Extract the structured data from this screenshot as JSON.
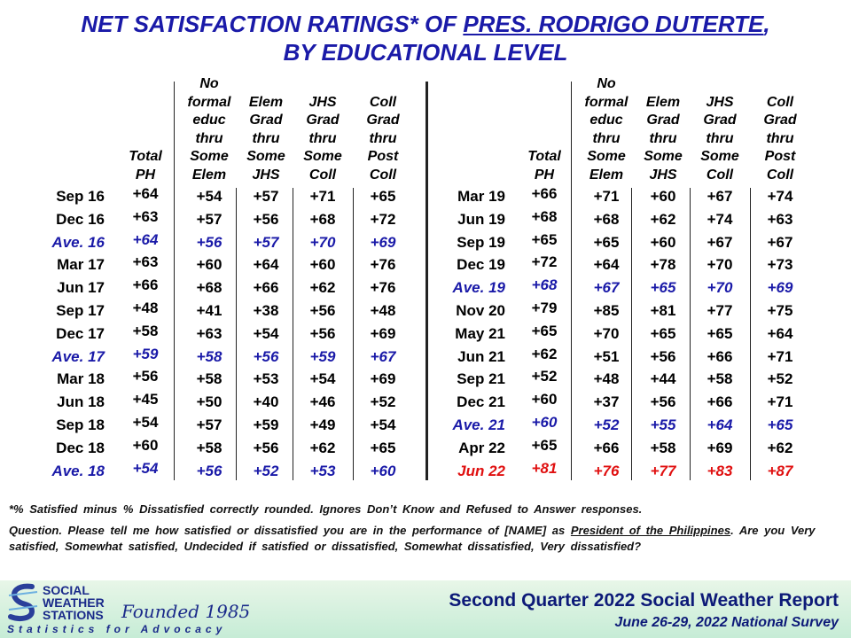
{
  "title": {
    "line1_pre": "NET SATISFACTION  RATINGS* OF ",
    "line1_link": "PRES. RODRIGO DUTERTE",
    "line1_post": ",",
    "line2": "BY EDUCATIONAL  LEVEL"
  },
  "headers": {
    "total": [
      "Total",
      "PH"
    ],
    "nofor": [
      "No",
      "formal",
      "educ",
      "thru",
      "Some",
      "Elem"
    ],
    "elem": [
      "Elem",
      "Grad",
      "thru",
      "Some",
      "JHS"
    ],
    "jhs": [
      "JHS",
      "Grad",
      "thru",
      "Some",
      "Coll"
    ],
    "coll": [
      "Coll",
      "Grad",
      "thru",
      "Post",
      "Coll"
    ]
  },
  "chart_data": {
    "type": "table",
    "title": "NET SATISFACTION RATINGS* OF PRES. RODRIGO DUTERTE, BY EDUCATIONAL LEVEL",
    "columns": [
      "Total PH",
      "No formal educ thru Some Elem",
      "Elem Grad thru Some JHS",
      "JHS Grad thru Some Coll",
      "Coll Grad thru Post Coll"
    ],
    "left": [
      {
        "label": "Sep 16",
        "values": [
          "+64",
          "+54",
          "+57",
          "+71",
          "+65"
        ],
        "style": "normal"
      },
      {
        "label": "Dec 16",
        "values": [
          "+63",
          "+57",
          "+56",
          "+68",
          "+72"
        ],
        "style": "normal"
      },
      {
        "label": "Ave. 16",
        "values": [
          "+64",
          "+56",
          "+57",
          "+70",
          "+69"
        ],
        "style": "ave"
      },
      {
        "label": "Mar 17",
        "values": [
          "+63",
          "+60",
          "+64",
          "+60",
          "+76"
        ],
        "style": "normal"
      },
      {
        "label": "Jun 17",
        "values": [
          "+66",
          "+68",
          "+66",
          "+62",
          "+76"
        ],
        "style": "normal"
      },
      {
        "label": "Sep 17",
        "values": [
          "+48",
          "+41",
          "+38",
          "+56",
          "+48"
        ],
        "style": "normal"
      },
      {
        "label": "Dec 17",
        "values": [
          "+58",
          "+63",
          "+54",
          "+56",
          "+69"
        ],
        "style": "normal"
      },
      {
        "label": "Ave. 17",
        "values": [
          "+59",
          "+58",
          "+56",
          "+59",
          "+67"
        ],
        "style": "ave"
      },
      {
        "label": "Mar 18",
        "values": [
          "+56",
          "+58",
          "+53",
          "+54",
          "+69"
        ],
        "style": "normal"
      },
      {
        "label": "Jun 18",
        "values": [
          "+45",
          "+50",
          "+40",
          "+46",
          "+52"
        ],
        "style": "normal"
      },
      {
        "label": "Sep 18",
        "values": [
          "+54",
          "+57",
          "+59",
          "+49",
          "+54"
        ],
        "style": "normal"
      },
      {
        "label": "Dec 18",
        "values": [
          "+60",
          "+58",
          "+56",
          "+62",
          "+65"
        ],
        "style": "normal"
      },
      {
        "label": "Ave. 18",
        "values": [
          "+54",
          "+56",
          "+52",
          "+53",
          "+60"
        ],
        "style": "ave"
      }
    ],
    "right": [
      {
        "label": "Mar 19",
        "values": [
          "+66",
          "+71",
          "+60",
          "+67",
          "+74"
        ],
        "style": "normal"
      },
      {
        "label": "Jun 19",
        "values": [
          "+68",
          "+68",
          "+62",
          "+74",
          "+63"
        ],
        "style": "normal"
      },
      {
        "label": "Sep 19",
        "values": [
          "+65",
          "+65",
          "+60",
          "+67",
          "+67"
        ],
        "style": "normal"
      },
      {
        "label": "Dec 19",
        "values": [
          "+72",
          "+64",
          "+78",
          "+70",
          "+73"
        ],
        "style": "normal"
      },
      {
        "label": "Ave. 19",
        "values": [
          "+68",
          "+67",
          "+65",
          "+70",
          "+69"
        ],
        "style": "ave"
      },
      {
        "label": "Nov 20",
        "values": [
          "+79",
          "+85",
          "+81",
          "+77",
          "+75"
        ],
        "style": "normal"
      },
      {
        "label": "May 21",
        "values": [
          "+65",
          "+70",
          "+65",
          "+65",
          "+64"
        ],
        "style": "normal"
      },
      {
        "label": "Jun 21",
        "values": [
          "+62",
          "+51",
          "+56",
          "+66",
          "+71"
        ],
        "style": "normal"
      },
      {
        "label": "Sep 21",
        "values": [
          "+52",
          "+48",
          "+44",
          "+58",
          "+52"
        ],
        "style": "normal"
      },
      {
        "label": "Dec 21",
        "values": [
          "+60",
          "+37",
          "+56",
          "+66",
          "+71"
        ],
        "style": "normal"
      },
      {
        "label": "Ave. 21",
        "values": [
          "+60",
          "+52",
          "+55",
          "+64",
          "+65"
        ],
        "style": "ave"
      },
      {
        "label": "Apr 22",
        "values": [
          "+65",
          "+66",
          "+58",
          "+69",
          "+62"
        ],
        "style": "normal"
      },
      {
        "label": "Jun 22",
        "values": [
          "+81",
          "+76",
          "+77",
          "+83",
          "+87"
        ],
        "style": "red"
      }
    ]
  },
  "notes": {
    "footnote": "*% Satisfied minus % Dissatisfied correctly rounded. Ignores Don’t Know and Refused to Answer responses.",
    "question_pre": "Question. Please tell me how satisfied or dissatisfied you are in the performance of [NAME] as ",
    "question_link": "President of the Philippines",
    "question_post": ". Are you Very satisfied, Somewhat satisfied, Undecided if satisfied or dissatisfied, Somewhat dissatisfied, Very dissatisfied?"
  },
  "footer": {
    "logo_lines": [
      "SOCIAL",
      "WEATHER",
      "STATIONS"
    ],
    "founded": "Founded 1985",
    "tagline": "Statistics for Advocacy",
    "report": "Second Quarter 2022 Social Weather Report",
    "survey": "June 26-29, 2022 National Survey"
  },
  "colors": {
    "title": "#1a1aa8",
    "average": "#1a1aa8",
    "latest": "#e01010",
    "footer_text": "#0d1a78"
  }
}
